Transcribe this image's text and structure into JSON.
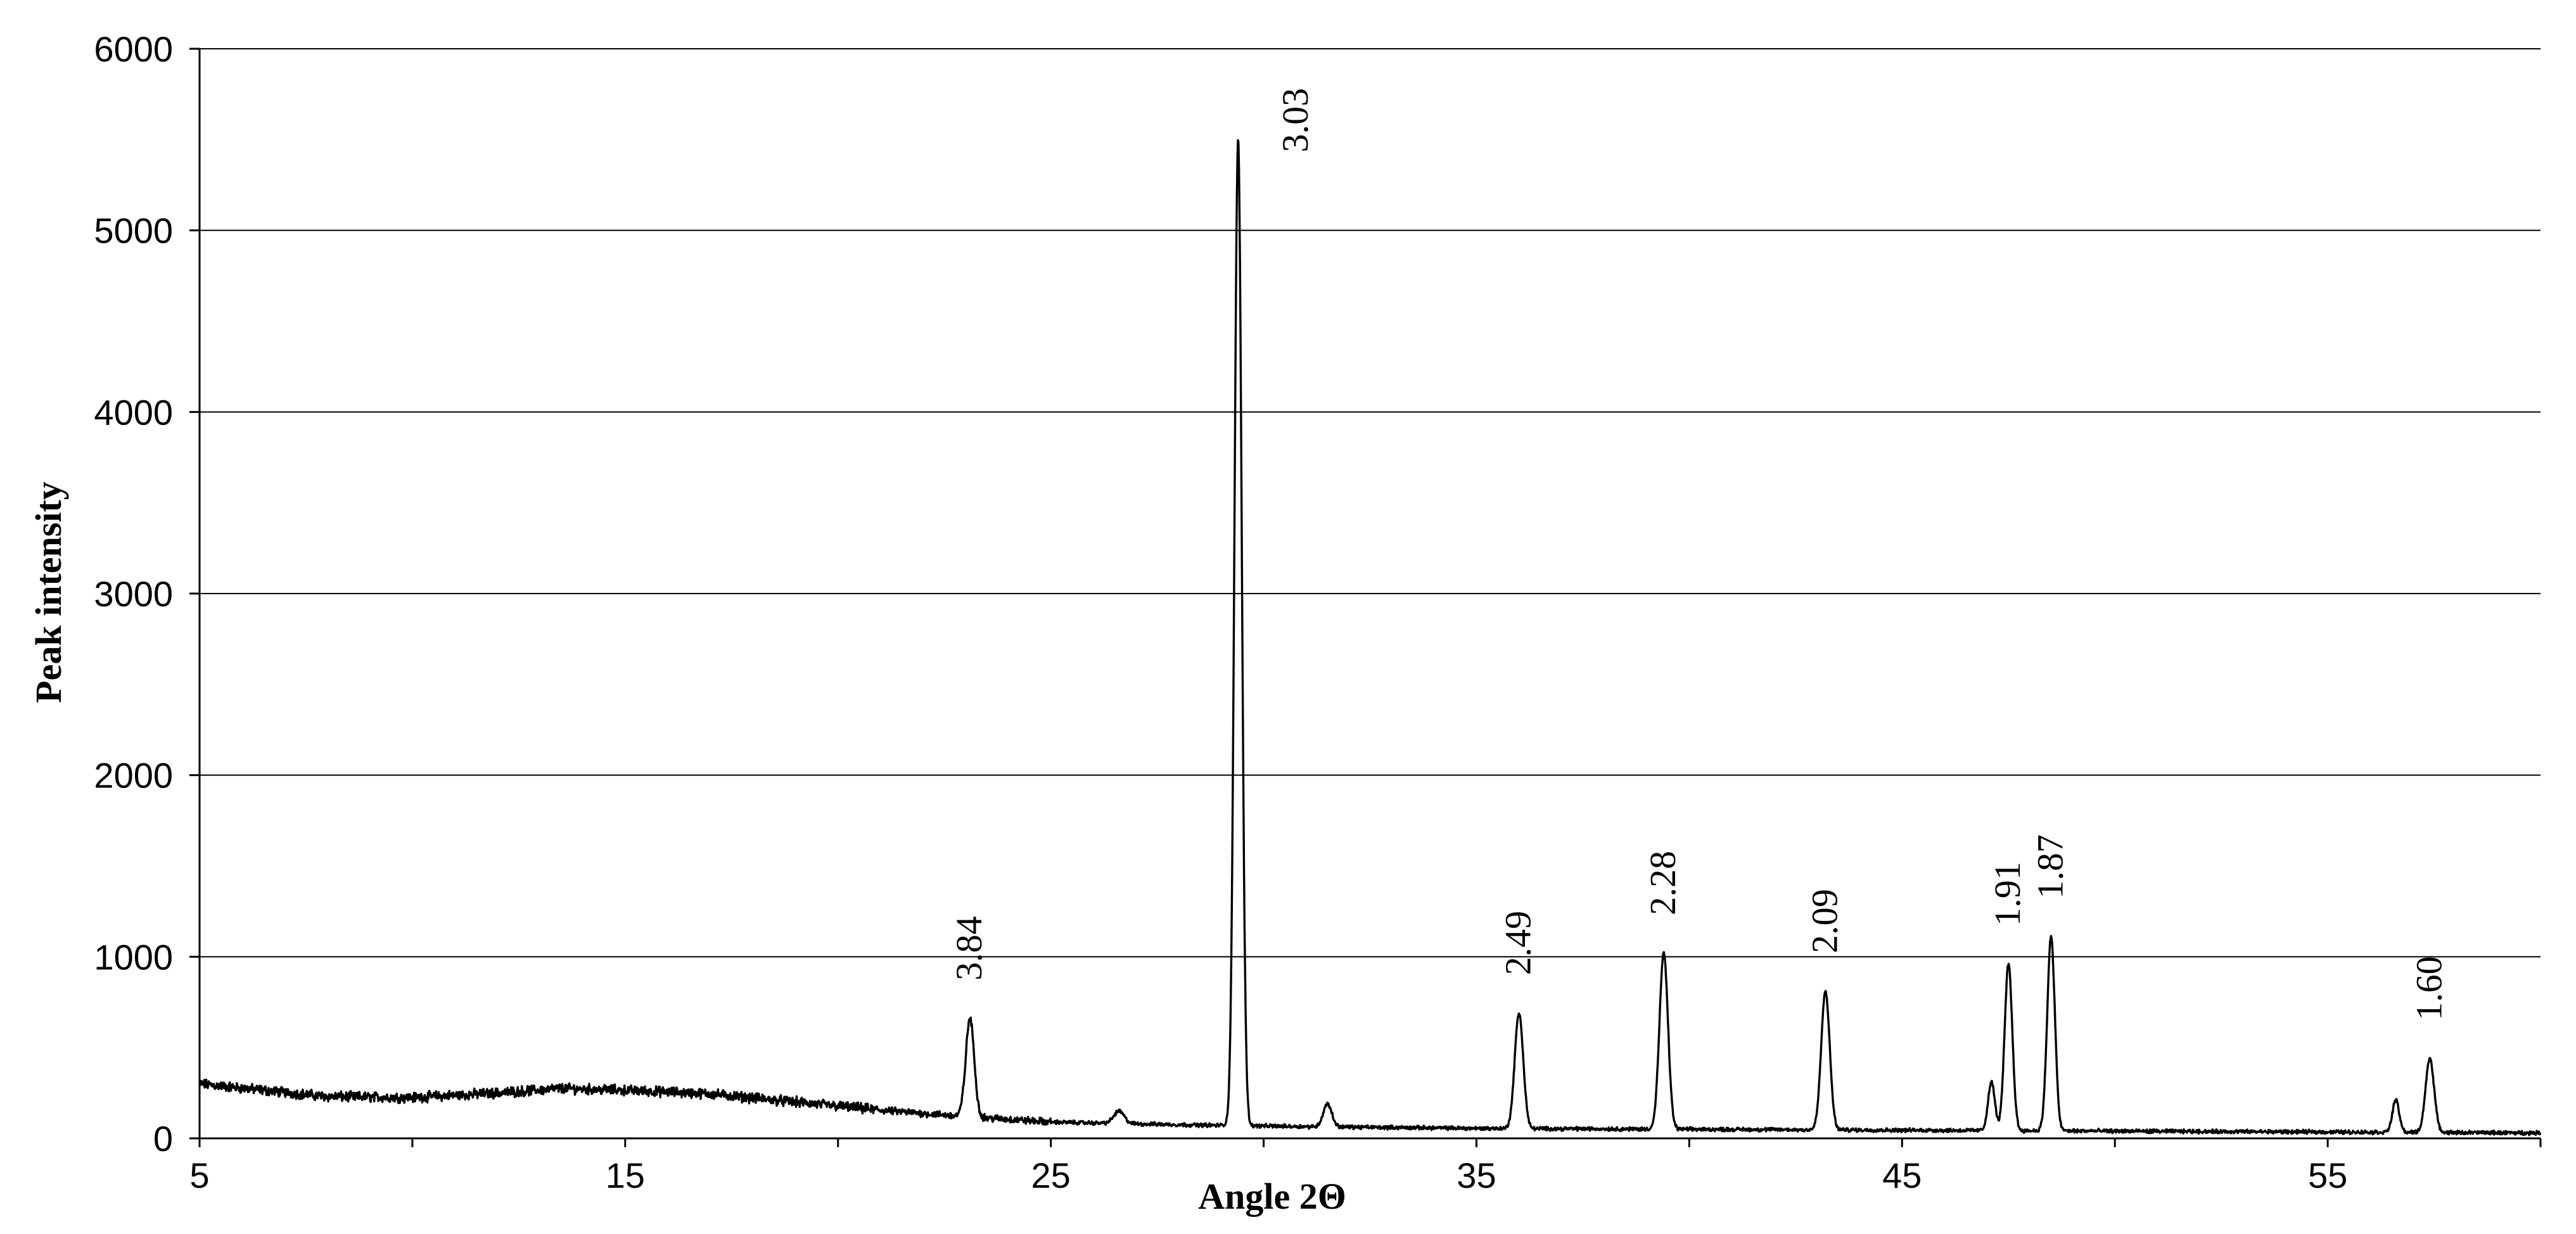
{
  "chart_data": {
    "type": "line",
    "title": "",
    "xlabel": "Angle 2Θ",
    "ylabel": "Peak intensity",
    "xlim": [
      5,
      60
    ],
    "ylim": [
      0,
      6000
    ],
    "x_ticks": [
      5,
      15,
      25,
      35,
      45,
      55
    ],
    "y_ticks": [
      0,
      1000,
      2000,
      3000,
      4000,
      5000,
      6000
    ],
    "grid": "horizontal",
    "legend": "none",
    "line_color": "#000000",
    "grid_color": "#000000",
    "baseline": [
      [
        5,
        300
      ],
      [
        8,
        230
      ],
      [
        10,
        225
      ],
      [
        12,
        250
      ],
      [
        13.5,
        275
      ],
      [
        15,
        265
      ],
      [
        17,
        245
      ],
      [
        19,
        200
      ],
      [
        21,
        155
      ],
      [
        23,
        120
      ],
      [
        25,
        90
      ],
      [
        28,
        75
      ],
      [
        31,
        65
      ],
      [
        35,
        55
      ],
      [
        40,
        50
      ],
      [
        45,
        45
      ],
      [
        50,
        40
      ],
      [
        55,
        35
      ],
      [
        60,
        30
      ]
    ],
    "peaks": [
      {
        "x": 23.1,
        "y": 660,
        "width": 0.1,
        "label": "3.84"
      },
      {
        "x": 26.6,
        "y": 150,
        "width": 0.12,
        "label": ""
      },
      {
        "x": 29.4,
        "y": 5500,
        "width": 0.085,
        "label": "3.03"
      },
      {
        "x": 31.5,
        "y": 190,
        "width": 0.1,
        "label": ""
      },
      {
        "x": 36.0,
        "y": 690,
        "width": 0.1,
        "label": "2.49"
      },
      {
        "x": 39.4,
        "y": 1020,
        "width": 0.1,
        "label": "2.28"
      },
      {
        "x": 43.2,
        "y": 810,
        "width": 0.1,
        "label": "2.09"
      },
      {
        "x": 47.1,
        "y": 310,
        "width": 0.08,
        "label": ""
      },
      {
        "x": 47.5,
        "y": 960,
        "width": 0.09,
        "label": "1.91"
      },
      {
        "x": 48.5,
        "y": 1110,
        "width": 0.09,
        "label": "1.87"
      },
      {
        "x": 56.6,
        "y": 210,
        "width": 0.08,
        "label": ""
      },
      {
        "x": 57.4,
        "y": 440,
        "width": 0.1,
        "label": "1.60"
      }
    ]
  }
}
